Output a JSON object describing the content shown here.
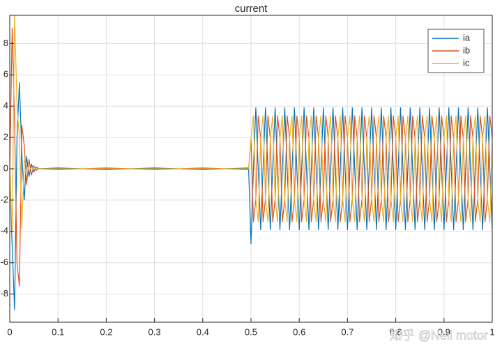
{
  "chart_data": {
    "type": "line",
    "title": "current",
    "x": [
      0,
      0.005,
      0.01,
      0.015,
      0.02,
      0.025,
      0.03,
      0.035,
      0.04,
      0.045,
      0.05,
      0.055,
      0.06,
      0.1,
      0.2,
      0.3,
      0.4,
      0.495,
      0.5,
      0.505,
      0.51,
      0.515,
      0.52,
      0.525,
      0.53,
      0.535,
      0.54,
      0.545,
      0.55,
      0.555,
      0.56,
      0.565,
      0.57,
      0.575,
      0.58,
      0.585,
      0.59,
      0.595,
      0.6,
      0.605,
      0.61,
      0.615,
      0.62,
      0.625,
      0.63,
      0.635,
      0.64,
      0.645,
      0.65,
      0.655,
      0.66,
      0.665,
      0.67,
      0.675,
      0.68,
      0.685,
      0.69,
      0.695,
      0.7,
      0.705,
      0.71,
      0.715,
      0.72,
      0.725,
      0.73,
      0.735,
      0.74,
      0.745,
      0.75,
      0.755,
      0.76,
      0.765,
      0.77,
      0.775,
      0.78,
      0.785,
      0.79,
      0.795,
      0.8,
      0.805,
      0.81,
      0.815,
      0.82,
      0.825,
      0.83,
      0.835,
      0.84,
      0.845,
      0.85,
      0.855,
      0.86,
      0.865,
      0.87,
      0.875,
      0.88,
      0.885,
      0.89,
      0.895,
      0.9,
      0.905,
      0.91,
      0.915,
      0.92,
      0.925,
      0.93,
      0.935,
      0.94,
      0.945,
      0.95,
      0.955,
      0.96,
      0.965,
      0.97,
      0.975,
      0.98,
      0.985,
      0.99,
      0.995,
      1
    ],
    "series": [
      {
        "name": "ia",
        "color": "#0072bd",
        "values": [
          0,
          -5,
          -9,
          2,
          5.5,
          1,
          -2,
          0.8,
          -0.5,
          0.3,
          -0.2,
          0.1,
          0,
          0.05,
          -0.05,
          0.05,
          -0.05,
          0.05,
          -4.8,
          0,
          3.9,
          0,
          -3.9,
          0,
          3.9,
          0,
          -3.9,
          0,
          3.9,
          0,
          -3.9,
          0,
          3.9,
          0,
          -3.9,
          0,
          3.9,
          0,
          -3.9,
          0,
          3.9,
          0,
          -3.9,
          0,
          3.9,
          0,
          -3.9,
          0,
          3.9,
          0,
          -3.9,
          0,
          3.9,
          0,
          -3.9,
          0,
          3.9,
          0,
          -3.9,
          0,
          3.9,
          0,
          -3.9,
          0,
          3.9,
          0,
          -3.9,
          0,
          3.9,
          0,
          -3.9,
          0,
          3.9,
          0,
          -3.9,
          0,
          3.9,
          0,
          -3.9,
          0,
          3.9,
          0,
          -3.9,
          0,
          3.9,
          0,
          -3.9,
          0,
          3.9,
          0,
          -3.9,
          0,
          3.9,
          0,
          -3.9,
          0,
          3.9,
          0,
          -3.9,
          0,
          3.9,
          0,
          -3.9,
          0,
          3.9,
          0,
          -3.9,
          0,
          3.9,
          0,
          -3.9,
          0,
          3.9,
          0,
          -3.9,
          0,
          3.9,
          0,
          -3.9
        ]
      },
      {
        "name": "ib",
        "color": "#d95319",
        "values": [
          0,
          9,
          3,
          -6,
          -7.5,
          2.8,
          1.5,
          -1,
          0.6,
          -0.4,
          0.2,
          -0.1,
          0,
          -0.05,
          0.05,
          -0.05,
          0.05,
          -0.05,
          1.95,
          -3.38,
          -1.95,
          3.38,
          1.95,
          -3.38,
          -1.95,
          3.38,
          1.95,
          -3.38,
          -1.95,
          3.38,
          1.95,
          -3.38,
          -1.95,
          3.38,
          1.95,
          -3.38,
          -1.95,
          3.38,
          1.95,
          -3.38,
          -1.95,
          3.38,
          1.95,
          -3.38,
          -1.95,
          3.38,
          1.95,
          -3.38,
          -1.95,
          3.38,
          1.95,
          -3.38,
          -1.95,
          3.38,
          1.95,
          -3.38,
          -1.95,
          3.38,
          1.95,
          -3.38,
          -1.95,
          3.38,
          1.95,
          -3.38,
          -1.95,
          3.38,
          1.95,
          -3.38,
          -1.95,
          3.38,
          1.95,
          -3.38,
          -1.95,
          3.38,
          1.95,
          -3.38,
          -1.95,
          3.38,
          1.95,
          -3.38,
          -1.95,
          3.38,
          1.95,
          -3.38,
          -1.95,
          3.38,
          1.95,
          -3.38,
          -1.95,
          3.38,
          1.95,
          -3.38,
          -1.95,
          3.38,
          1.95,
          -3.38,
          -1.95,
          3.38,
          1.95,
          -3.38,
          -1.95,
          3.38,
          1.95,
          -3.38,
          -1.95,
          3.38,
          1.95,
          -3.38,
          -1.95,
          3.38,
          1.95,
          -3.38,
          -1.95,
          3.38,
          1.95,
          -3.38,
          -1.95,
          3.38,
          1.95
        ]
      },
      {
        "name": "ic",
        "color": "#edb120",
        "values": [
          0,
          -4,
          10,
          4,
          2,
          -3.8,
          0.5,
          0.2,
          -0.1,
          0.1,
          0,
          0,
          0,
          0,
          0,
          0,
          0,
          0,
          1.95,
          3.38,
          -1.95,
          -3.38,
          1.95,
          3.38,
          -1.95,
          -3.38,
          1.95,
          3.38,
          -1.95,
          -3.38,
          1.95,
          3.38,
          -1.95,
          -3.38,
          1.95,
          3.38,
          -1.95,
          -3.38,
          1.95,
          3.38,
          -1.95,
          -3.38,
          1.95,
          3.38,
          -1.95,
          -3.38,
          1.95,
          3.38,
          -1.95,
          -3.38,
          1.95,
          3.38,
          -1.95,
          -3.38,
          1.95,
          3.38,
          -1.95,
          -3.38,
          1.95,
          3.38,
          -1.95,
          -3.38,
          1.95,
          3.38,
          -1.95,
          -3.38,
          1.95,
          3.38,
          -1.95,
          -3.38,
          1.95,
          3.38,
          -1.95,
          -3.38,
          1.95,
          3.38,
          -1.95,
          -3.38,
          1.95,
          3.38,
          -1.95,
          -3.38,
          1.95,
          3.38,
          -1.95,
          -3.38,
          1.95,
          3.38,
          -1.95,
          -3.38,
          1.95,
          3.38,
          -1.95,
          -3.38,
          1.95,
          3.38,
          -1.95,
          -3.38,
          1.95,
          3.38,
          -1.95,
          -3.38,
          1.95,
          3.38,
          -1.95,
          -3.38,
          1.95,
          3.38,
          -1.95,
          -3.38,
          1.95,
          3.38,
          -1.95,
          -3.38,
          1.95,
          3.38,
          -1.95,
          -3.38,
          1.95
        ]
      }
    ],
    "xlim": [
      0,
      1
    ],
    "xticks": [
      0,
      0.1,
      0.2,
      0.3,
      0.4,
      0.5,
      0.6,
      0.7,
      0.8,
      0.9,
      1
    ],
    "ylim": [
      -9.8,
      9.8
    ],
    "yticks": [
      -8,
      -6,
      -4,
      -2,
      0,
      2,
      4,
      6,
      8
    ],
    "grid": true,
    "legend": "northeast",
    "watermark": "知乎 @Neil motor"
  }
}
